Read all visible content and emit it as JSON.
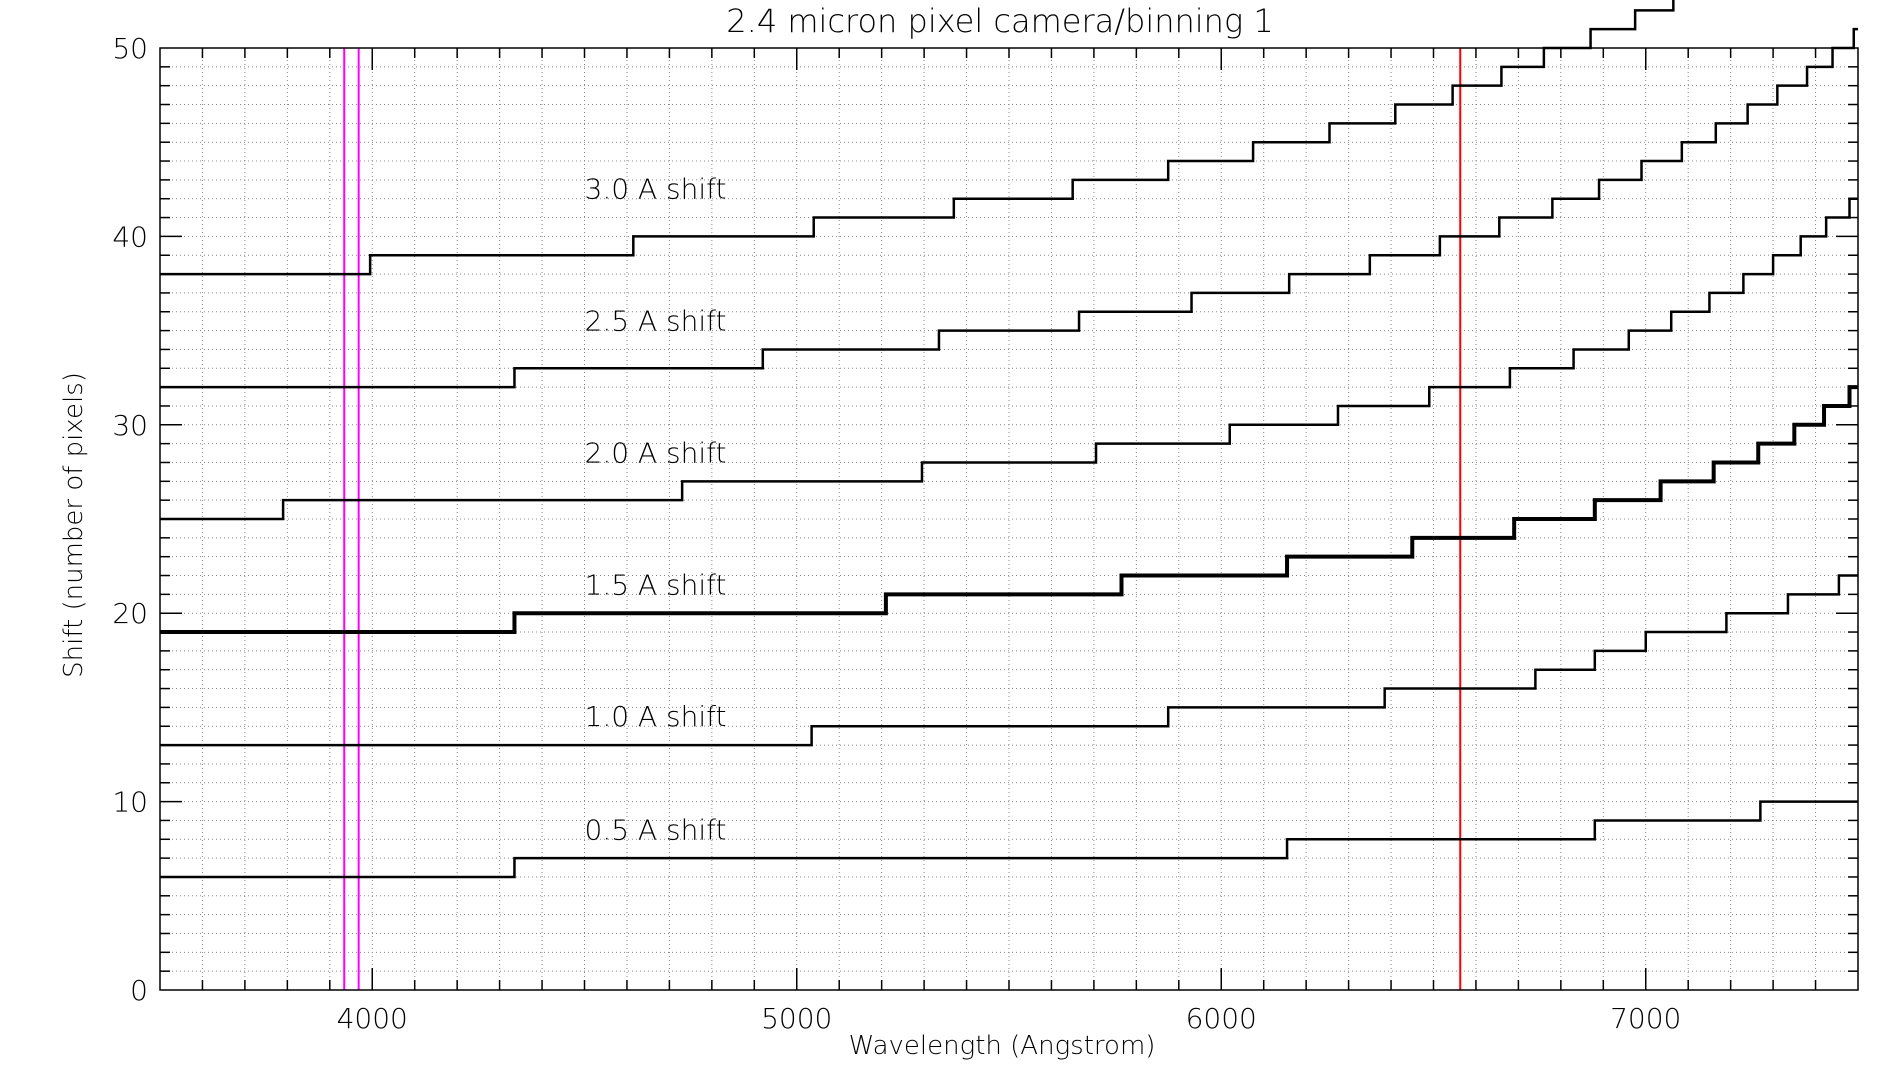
{
  "chart_data": {
    "type": "line",
    "title": "2.4 micron pixel camera/binning 1",
    "xlabel": "Wavelength (Angstrom)",
    "ylabel": "Shift (number of pixels)",
    "xlim": [
      3500,
      7500
    ],
    "ylim": [
      0,
      50
    ],
    "xticks": [
      4000,
      5000,
      6000,
      7000
    ],
    "yticks": [
      0,
      10,
      20,
      30,
      40,
      50
    ],
    "grid": true,
    "legend": "none",
    "colors": {
      "axes": "#000000",
      "grid": "#888888",
      "series": "#000000",
      "magenta_lines": "#ff00ff",
      "red_line": "#ff0000"
    },
    "vertical_lines": [
      {
        "x": 3934,
        "color": "#ff00ff"
      },
      {
        "x": 3968,
        "color": "#ff00ff"
      },
      {
        "x": 6563,
        "color": "#ff0000"
      }
    ],
    "series": [
      {
        "name": "0.5 A shift",
        "label_at": [
          4500,
          8
        ],
        "start": [
          3500,
          6
        ],
        "steps": [
          4335,
          6155,
          6880,
          7270
        ],
        "end_x": 7500,
        "bold": false
      },
      {
        "name": "1.0 A shift",
        "label_at": [
          4500,
          14
        ],
        "start": [
          3500,
          13
        ],
        "steps": [
          5035,
          5875,
          6385,
          6740,
          6880,
          7000,
          7190,
          7335,
          7455
        ],
        "end_x": 7500,
        "bold": false
      },
      {
        "name": "1.5 A shift",
        "label_at": [
          4500,
          21
        ],
        "start": [
          3500,
          19
        ],
        "steps": [
          4335,
          5210,
          5765,
          6155,
          6450,
          6690,
          6880,
          7035,
          7160,
          7265,
          7350,
          7420,
          7480
        ],
        "end_x": 7500,
        "bold": true
      },
      {
        "name": "2.0 A shift",
        "label_at": [
          4500,
          28
        ],
        "start": [
          3500,
          25
        ],
        "steps": [
          3790,
          4730,
          5295,
          5705,
          6020,
          6275,
          6490,
          6680,
          6830,
          6960,
          7060,
          7150,
          7230,
          7300,
          7365,
          7425,
          7480
        ],
        "end_x": 7500,
        "bold": false
      },
      {
        "name": "2.5 A shift",
        "label_at": [
          4500,
          35
        ],
        "start": [
          3500,
          32
        ],
        "steps": [
          4335,
          4920,
          5335,
          5665,
          5930,
          6160,
          6350,
          6515,
          6655,
          6780,
          6890,
          6990,
          7085,
          7165,
          7240,
          7310,
          7380,
          7440,
          7490
        ],
        "end_x": 7500,
        "bold": false
      },
      {
        "name": "3.0 A shift",
        "label_at": [
          4500,
          42
        ],
        "start": [
          3500,
          38
        ],
        "steps": [
          3995,
          4615,
          5040,
          5370,
          5650,
          5875,
          6075,
          6255,
          6410,
          6545,
          6660,
          6760,
          6870,
          6975,
          7065,
          7145,
          7225,
          7290,
          7345,
          7400
        ],
        "end_x": 7500,
        "bold": false
      }
    ]
  }
}
